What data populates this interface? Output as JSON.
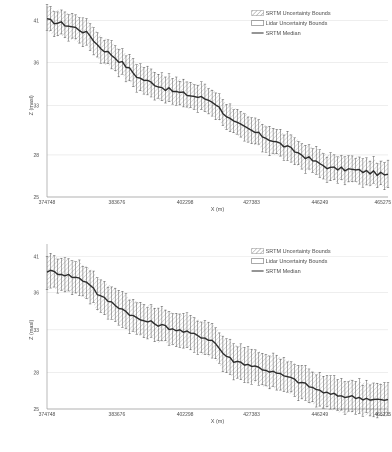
{
  "chart_data": [
    {
      "type": "line",
      "title": "",
      "xlabel": "X (m)",
      "ylabel": "Z (masl)",
      "x_ticks": [
        "374748",
        "383676",
        "402298",
        "427383",
        "446249",
        "465275"
      ],
      "y_ticks": [
        "25",
        "28",
        "33",
        "36",
        "41"
      ],
      "xlim": [
        374748,
        465275
      ],
      "ylim": [
        25,
        41
      ],
      "grid": true,
      "legend_position": "top-right",
      "legend": [
        {
          "label": "SRTM Uncertainty Bounds",
          "kind": "hatched"
        },
        {
          "label": "Lidar Uncertainty Bounds",
          "kind": "box"
        },
        {
          "label": "SRTM Median",
          "kind": "line"
        }
      ],
      "median_profile": [
        {
          "x": 374748,
          "y": 39.8
        },
        {
          "x": 379000,
          "y": 39.5
        },
        {
          "x": 383000,
          "y": 39.1
        },
        {
          "x": 386000,
          "y": 38.6
        },
        {
          "x": 388500,
          "y": 37.6
        },
        {
          "x": 392000,
          "y": 36.9
        },
        {
          "x": 396000,
          "y": 35.9
        },
        {
          "x": 399000,
          "y": 35.0
        },
        {
          "x": 402298,
          "y": 34.6
        },
        {
          "x": 406000,
          "y": 34.1
        },
        {
          "x": 409000,
          "y": 33.8
        },
        {
          "x": 413000,
          "y": 33.5
        },
        {
          "x": 416000,
          "y": 33.3
        },
        {
          "x": 419000,
          "y": 33.0
        },
        {
          "x": 421500,
          "y": 32.1
        },
        {
          "x": 424000,
          "y": 31.3
        },
        {
          "x": 427383,
          "y": 30.8
        },
        {
          "x": 432000,
          "y": 30.1
        },
        {
          "x": 437000,
          "y": 29.4
        },
        {
          "x": 442000,
          "y": 28.6
        },
        {
          "x": 446249,
          "y": 27.9
        },
        {
          "x": 450000,
          "y": 27.4
        },
        {
          "x": 455000,
          "y": 27.3
        },
        {
          "x": 460000,
          "y": 27.1
        },
        {
          "x": 465275,
          "y": 26.8
        }
      ],
      "band_halfwidth": 1.1
    },
    {
      "type": "line",
      "title": "",
      "xlabel": "X (m)",
      "ylabel": "Z (masl)",
      "x_ticks": [
        "374748",
        "383676",
        "402298",
        "427383",
        "446249",
        "465275"
      ],
      "y_ticks": [
        "25",
        "28",
        "33",
        "36",
        "41"
      ],
      "xlim": [
        374748,
        465275
      ],
      "ylim": [
        25,
        41
      ],
      "grid": true,
      "legend_position": "top-right",
      "legend": [
        {
          "label": "SRTM Uncertainty Bounds",
          "kind": "hatched"
        },
        {
          "label": "Lidar Uncertainty Bounds",
          "kind": "box"
        },
        {
          "label": "SRTM Median",
          "kind": "line"
        }
      ],
      "median_profile": [
        {
          "x": 374748,
          "y": 38.4
        },
        {
          "x": 379000,
          "y": 38.1
        },
        {
          "x": 383000,
          "y": 37.7
        },
        {
          "x": 386000,
          "y": 37.2
        },
        {
          "x": 388500,
          "y": 36.0
        },
        {
          "x": 392000,
          "y": 35.3
        },
        {
          "x": 396000,
          "y": 34.4
        },
        {
          "x": 399000,
          "y": 33.7
        },
        {
          "x": 402298,
          "y": 33.4
        },
        {
          "x": 406000,
          "y": 33.0
        },
        {
          "x": 409000,
          "y": 32.7
        },
        {
          "x": 413000,
          "y": 32.3
        },
        {
          "x": 416000,
          "y": 32.0
        },
        {
          "x": 419000,
          "y": 31.6
        },
        {
          "x": 421500,
          "y": 30.4
        },
        {
          "x": 424000,
          "y": 29.7
        },
        {
          "x": 427383,
          "y": 29.4
        },
        {
          "x": 432000,
          "y": 28.9
        },
        {
          "x": 437000,
          "y": 28.3
        },
        {
          "x": 442000,
          "y": 27.6
        },
        {
          "x": 446249,
          "y": 26.9
        },
        {
          "x": 450000,
          "y": 26.4
        },
        {
          "x": 455000,
          "y": 26.2
        },
        {
          "x": 460000,
          "y": 26.0
        },
        {
          "x": 465275,
          "y": 25.8
        }
      ],
      "band_halfwidth": 1.6
    }
  ]
}
